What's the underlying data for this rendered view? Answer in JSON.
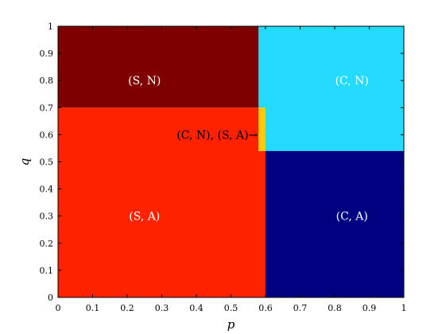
{
  "chart_data": {
    "type": "heatmap",
    "xlabel": "p",
    "ylabel": "q",
    "xlim": [
      0,
      1
    ],
    "ylim": [
      0,
      1
    ],
    "xticks": [
      "0",
      "0.1",
      "0.2",
      "0.3",
      "0.4",
      "0.5",
      "0.6",
      "0.7",
      "0.8",
      "0.9",
      "1"
    ],
    "yticks": [
      "0",
      "0.1",
      "0.2",
      "0.3",
      "0.4",
      "0.5",
      "0.6",
      "0.7",
      "0.8",
      "0.9",
      "1"
    ],
    "grid": false,
    "regions": [
      {
        "label": "(S, A)",
        "p": [
          0,
          0.6
        ],
        "q": [
          0,
          0.7
        ],
        "color": "#ff2200",
        "label_at": [
          0.25,
          0.3
        ]
      },
      {
        "label": "(S, N)",
        "p": [
          0,
          0.58
        ],
        "q": [
          0.7,
          1
        ],
        "color": "#7f0000",
        "label_at": [
          0.25,
          0.8
        ]
      },
      {
        "label": "(C, N)",
        "p": [
          0.58,
          1
        ],
        "q": [
          0.54,
          1
        ],
        "color": "#22dbff",
        "label_at": [
          0.85,
          0.8
        ]
      },
      {
        "label": "(C, A)",
        "p": [
          0.6,
          1
        ],
        "q": [
          0,
          0.54
        ],
        "color": "#000080",
        "label_at": [
          0.85,
          0.3
        ]
      },
      {
        "label": "",
        "p": [
          0.58,
          0.6
        ],
        "q": [
          0.54,
          0.7
        ],
        "color": "#ffcc00",
        "label_at": null
      }
    ],
    "annotation": {
      "text": "(C, N), (S, A)→",
      "anchor": [
        0.58,
        0.6
      ]
    }
  }
}
